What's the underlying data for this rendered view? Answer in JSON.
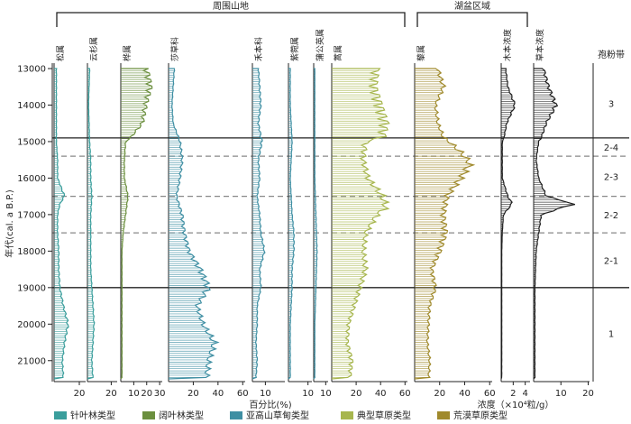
{
  "chart_data": {
    "type": "pollen-diagram",
    "title": "",
    "ylabel": "年代(cal. a B.P.)",
    "ylim": [
      13000,
      21500
    ],
    "y_ticks": [
      13000,
      14000,
      15000,
      16000,
      17000,
      18000,
      19000,
      20000,
      21000
    ],
    "y_tick_labels": [
      "13000",
      "14000",
      "15000",
      "16000",
      "17000",
      "18000",
      "19000",
      "20000",
      "21000"
    ],
    "group_headers": [
      {
        "label": "周围山地",
        "from_panel": 0,
        "to_panel": 7
      },
      {
        "label": "湖盆区域",
        "from_panel": 8,
        "to_panel": 9
      }
    ],
    "zone_axis_label": "孢粉带",
    "xlabel_percent": "百分比(%)",
    "xlabel_concentration": "浓度（×10⁴粒/g）",
    "colors": {
      "conifer": "#3a9e9c",
      "broadleaf": "#6b8f3e",
      "alpine_meadow": "#3f8fa3",
      "typical_steppe": "#a7b64e",
      "desert_steppe": "#a08a2c",
      "concentration": "#1f1f1f"
    },
    "legend": [
      {
        "label": "针叶林类型",
        "color_key": "conifer"
      },
      {
        "label": "阔叶林类型",
        "color_key": "broadleaf"
      },
      {
        "label": "亚高山草甸类型",
        "color_key": "alpine_meadow"
      },
      {
        "label": "典型草原类型",
        "color_key": "typical_steppe"
      },
      {
        "label": "荒漠草原类型",
        "color_key": "desert_steppe"
      }
    ],
    "zones": [
      {
        "label": "3",
        "from": 13000,
        "to": 14900
      },
      {
        "label": "2-4",
        "from": 14900,
        "to": 15400
      },
      {
        "label": "2-3",
        "from": 15400,
        "to": 16500
      },
      {
        "label": "2-2",
        "from": 16500,
        "to": 17500
      },
      {
        "label": "2-1",
        "from": 17500,
        "to": 19000
      },
      {
        "label": "1",
        "from": 19000,
        "to": 21500
      }
    ],
    "boundaries": [
      {
        "age": 14900,
        "style": "solid"
      },
      {
        "age": 15400,
        "style": "dashed"
      },
      {
        "age": 16500,
        "style": "dashed"
      },
      {
        "age": 17500,
        "style": "dashed"
      },
      {
        "age": 19000,
        "style": "solid"
      }
    ],
    "series": [
      {
        "name": "松属",
        "type": "percent",
        "color_key": "conifer",
        "xmax": 25,
        "ticks": [
          20
        ],
        "tick_labels": [
          "20"
        ],
        "points": [
          [
            13000,
            2
          ],
          [
            13500,
            2
          ],
          [
            14000,
            2
          ],
          [
            14500,
            2
          ],
          [
            15000,
            2
          ],
          [
            15500,
            3
          ],
          [
            16000,
            3
          ],
          [
            16500,
            9
          ],
          [
            16700,
            5
          ],
          [
            17000,
            3
          ],
          [
            17500,
            3
          ],
          [
            18000,
            4
          ],
          [
            18500,
            4
          ],
          [
            19000,
            5
          ],
          [
            19500,
            8
          ],
          [
            20000,
            12
          ],
          [
            20500,
            9
          ],
          [
            21000,
            7
          ],
          [
            21500,
            8
          ]
        ]
      },
      {
        "name": "云杉属",
        "type": "percent",
        "color_key": "conifer",
        "xmax": 25,
        "ticks": [
          20
        ],
        "tick_labels": [
          "20"
        ],
        "points": [
          [
            13000,
            2
          ],
          [
            14000,
            1
          ],
          [
            15000,
            2
          ],
          [
            15500,
            3
          ],
          [
            16000,
            3
          ],
          [
            16500,
            4
          ],
          [
            17000,
            3
          ],
          [
            17500,
            3
          ],
          [
            18000,
            3
          ],
          [
            18500,
            3
          ],
          [
            19000,
            4
          ],
          [
            19500,
            5
          ],
          [
            20000,
            6
          ],
          [
            20500,
            5
          ],
          [
            21000,
            4
          ],
          [
            21500,
            5
          ]
        ]
      },
      {
        "name": "桦属",
        "type": "percent",
        "color_key": "broadleaf",
        "xmax": 32,
        "ticks": [
          10,
          20,
          30
        ],
        "tick_labels": [
          "10",
          "20",
          "30"
        ],
        "points": [
          [
            13000,
            22
          ],
          [
            13500,
            25
          ],
          [
            14000,
            21
          ],
          [
            14500,
            18
          ],
          [
            14900,
            8
          ],
          [
            15000,
            4
          ],
          [
            15500,
            3
          ],
          [
            16000,
            3
          ],
          [
            16500,
            6
          ],
          [
            17000,
            4
          ],
          [
            17500,
            2
          ],
          [
            18000,
            1
          ],
          [
            19000,
            1
          ],
          [
            20000,
            1
          ],
          [
            21000,
            1
          ],
          [
            21500,
            1
          ]
        ]
      },
      {
        "name": "莎草科",
        "type": "percent",
        "color_key": "alpine_meadow",
        "xmax": 62,
        "ticks": [
          20,
          40,
          60
        ],
        "tick_labels": [
          "20",
          "40",
          "60"
        ],
        "points": [
          [
            13000,
            5
          ],
          [
            13500,
            4
          ],
          [
            14000,
            3
          ],
          [
            14500,
            4
          ],
          [
            15000,
            10
          ],
          [
            15500,
            12
          ],
          [
            16000,
            10
          ],
          [
            16500,
            7
          ],
          [
            17000,
            12
          ],
          [
            17500,
            14
          ],
          [
            18000,
            18
          ],
          [
            18500,
            28
          ],
          [
            19000,
            35
          ],
          [
            19500,
            25
          ],
          [
            20000,
            30
          ],
          [
            20500,
            40
          ],
          [
            21000,
            35
          ],
          [
            21500,
            33
          ]
        ]
      },
      {
        "name": "禾本科",
        "type": "percent",
        "color_key": "alpine_meadow",
        "xmax": 25,
        "ticks": [
          10
        ],
        "tick_labels": [
          "10"
        ],
        "points": [
          [
            13000,
            5
          ],
          [
            13500,
            6
          ],
          [
            14000,
            7
          ],
          [
            14500,
            5
          ],
          [
            15000,
            8
          ],
          [
            15500,
            5
          ],
          [
            16000,
            6
          ],
          [
            16500,
            4
          ],
          [
            17000,
            6
          ],
          [
            17500,
            7
          ],
          [
            18000,
            10
          ],
          [
            18500,
            6
          ],
          [
            19000,
            7
          ],
          [
            19500,
            4
          ],
          [
            20000,
            4
          ],
          [
            20500,
            3
          ],
          [
            21000,
            4
          ],
          [
            21500,
            3
          ]
        ]
      },
      {
        "name": "紫菀属",
        "type": "percent",
        "color_key": "alpine_meadow",
        "xmax": 12,
        "ticks": [
          10
        ],
        "tick_labels": [
          "10"
        ],
        "points": [
          [
            13000,
            1
          ],
          [
            14000,
            1
          ],
          [
            15000,
            2
          ],
          [
            16000,
            1
          ],
          [
            17000,
            2
          ],
          [
            17500,
            3
          ],
          [
            18000,
            3
          ],
          [
            18500,
            2
          ],
          [
            19000,
            2
          ],
          [
            20000,
            1
          ],
          [
            21000,
            1
          ],
          [
            21500,
            1
          ]
        ]
      },
      {
        "name": "蒲公英属",
        "type": "percent",
        "color_key": "alpine_meadow",
        "xmax": 12,
        "ticks": [
          10
        ],
        "tick_labels": [
          "10"
        ],
        "points": [
          [
            13000,
            1
          ],
          [
            14000,
            1
          ],
          [
            15000,
            1
          ],
          [
            16000,
            1
          ],
          [
            17000,
            2
          ],
          [
            18000,
            3
          ],
          [
            19000,
            2
          ],
          [
            20000,
            1
          ],
          [
            21000,
            1
          ],
          [
            21500,
            1
          ]
        ]
      },
      {
        "name": "蒿属",
        "type": "percent",
        "color_key": "typical_steppe",
        "xmax": 62,
        "ticks": [
          20,
          40,
          60
        ],
        "tick_labels": [
          "20",
          "40",
          "60"
        ],
        "points": [
          [
            13000,
            40
          ],
          [
            13500,
            38
          ],
          [
            14000,
            43
          ],
          [
            14500,
            48
          ],
          [
            14900,
            45
          ],
          [
            15000,
            30
          ],
          [
            15500,
            28
          ],
          [
            16000,
            32
          ],
          [
            16500,
            45
          ],
          [
            16800,
            48
          ],
          [
            17000,
            40
          ],
          [
            17500,
            30
          ],
          [
            18000,
            28
          ],
          [
            18500,
            30
          ],
          [
            19000,
            25
          ],
          [
            19500,
            20
          ],
          [
            20000,
            15
          ],
          [
            20500,
            14
          ],
          [
            21000,
            18
          ],
          [
            21500,
            16
          ]
        ]
      },
      {
        "name": "藜属",
        "type": "percent",
        "color_key": "desert_steppe",
        "xmax": 62,
        "ticks": [
          20,
          40,
          60
        ],
        "tick_labels": [
          "20",
          "40",
          "60"
        ],
        "points": [
          [
            13000,
            20
          ],
          [
            13500,
            25
          ],
          [
            14000,
            18
          ],
          [
            14500,
            20
          ],
          [
            14900,
            25
          ],
          [
            15000,
            30
          ],
          [
            15300,
            40
          ],
          [
            15600,
            48
          ],
          [
            16000,
            40
          ],
          [
            16500,
            28
          ],
          [
            17000,
            25
          ],
          [
            17500,
            27
          ],
          [
            18000,
            22
          ],
          [
            18500,
            15
          ],
          [
            19000,
            18
          ],
          [
            19500,
            13
          ],
          [
            20000,
            12
          ],
          [
            20500,
            11
          ],
          [
            21000,
            13
          ],
          [
            21500,
            12
          ]
        ]
      },
      {
        "name": "木本浓度",
        "type": "concentration",
        "color_key": "concentration",
        "xmax": 4.8,
        "ticks": [
          2,
          4
        ],
        "tick_labels": [
          "2",
          "4"
        ],
        "points": [
          [
            13000,
            0.8
          ],
          [
            13500,
            1.2
          ],
          [
            14000,
            2.5
          ],
          [
            14500,
            1.0
          ],
          [
            14900,
            0.5
          ],
          [
            15000,
            0.2
          ],
          [
            16000,
            0.2
          ],
          [
            16500,
            1.2
          ],
          [
            16700,
            2.0
          ],
          [
            17000,
            0.4
          ],
          [
            17500,
            0.2
          ],
          [
            18000,
            0.1
          ],
          [
            19000,
            0.1
          ],
          [
            20000,
            0.1
          ],
          [
            21000,
            0.1
          ],
          [
            21500,
            0.1
          ]
        ]
      },
      {
        "name": "草本浓度",
        "type": "concentration",
        "color_key": "concentration",
        "xmax": 20.5,
        "ticks": [
          10,
          20
        ],
        "tick_labels": [
          "10",
          "20"
        ],
        "points": [
          [
            13000,
            4
          ],
          [
            13500,
            6
          ],
          [
            14000,
            9
          ],
          [
            14500,
            5
          ],
          [
            14900,
            3
          ],
          [
            15000,
            2
          ],
          [
            15500,
            1
          ],
          [
            16000,
            2
          ],
          [
            16500,
            5
          ],
          [
            16700,
            16
          ],
          [
            17000,
            3
          ],
          [
            17500,
            2
          ],
          [
            18000,
            1
          ],
          [
            19000,
            0.5
          ],
          [
            20000,
            0.5
          ],
          [
            21000,
            0.5
          ],
          [
            21500,
            0.5
          ]
        ]
      }
    ]
  }
}
